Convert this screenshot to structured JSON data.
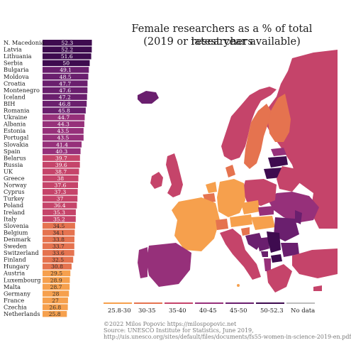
{
  "title_line1": "Female researchers as a % of total researchers",
  "title_line2": "(2019 or latest year available)",
  "chart_data": {
    "type": "bar",
    "orientation": "horizontal",
    "title": "Female researchers as a % of total researchers (2019 or latest year available)",
    "categories": [
      "N. Macedonia",
      "Latvia",
      "Lithuania",
      "Serbia",
      "Bulgaria",
      "Moldova",
      "Croatia",
      "Montenegro",
      "Iceland",
      "BIH",
      "Romania",
      "Ukraine",
      "Albania",
      "Estonia",
      "Portugal",
      "Slovakia",
      "Spain",
      "Belarus",
      "Russia",
      "UK",
      "Greece",
      "Norway",
      "Cyprus",
      "Turkey",
      "Poland",
      "Ireland",
      "Italy",
      "Slovenia",
      "Belgium",
      "Denmark",
      "Sweden",
      "Switzerland",
      "Finland",
      "Hungary",
      "Austria",
      "Luxembourg",
      "Malta",
      "Germany",
      "France",
      "Czechia",
      "Netherlands"
    ],
    "values": [
      52.3,
      52.2,
      51.6,
      50,
      49.1,
      48.5,
      47.7,
      47.6,
      47.2,
      46.8,
      45.8,
      44.7,
      44.3,
      43.5,
      43.5,
      41.4,
      40.3,
      39.7,
      39.6,
      38.7,
      38,
      37.6,
      37.3,
      37,
      36.4,
      35.3,
      35.2,
      34.5,
      34.1,
      33.8,
      33.7,
      33.6,
      32.5,
      30.8,
      29.5,
      28.9,
      28.7,
      28,
      27,
      26.8,
      25.8
    ],
    "value_labels": [
      "52.3",
      "52.2",
      "51.6",
      "50",
      "49.1",
      "48.5",
      "47.7",
      "47.6",
      "47.2",
      "46.8",
      "45.8",
      "44.7",
      "44.3",
      "43.5",
      "43.5",
      "41.4",
      "40.3",
      "39.7",
      "39.6",
      "38.7",
      "38",
      "37.6",
      "37.3",
      "37",
      "36.4",
      "35.3",
      "35.2",
      "34.5",
      "34.1",
      "33.8",
      "33.7",
      "33.6",
      "32.5",
      "30.8",
      "29.5",
      "28.9",
      "28.7",
      "28",
      "27",
      "26.8",
      "25.8"
    ],
    "legend": {
      "placement": "bottom",
      "items": [
        {
          "label": "25.8-30",
          "color": "#f6a04d"
        },
        {
          "label": "30-35",
          "color": "#e5734f"
        },
        {
          "label": "35-40",
          "color": "#c5446a"
        },
        {
          "label": "40-45",
          "color": "#96307a"
        },
        {
          "label": "45-50",
          "color": "#6a1f6e"
        },
        {
          "label": "50-52.3",
          "color": "#3e0b4f"
        },
        {
          "label": "No data",
          "color": "#bdbdbd"
        }
      ]
    }
  },
  "credits": {
    "line1": "©2022 Milos Popovic https://milospopovic.net",
    "line2": "Source: UNESCO Institute for Statistics, June 2019,",
    "line3": "http://uis.unesco.org/sites/default/files/documents/fs55-women-in-science-2019-en.pdf"
  }
}
